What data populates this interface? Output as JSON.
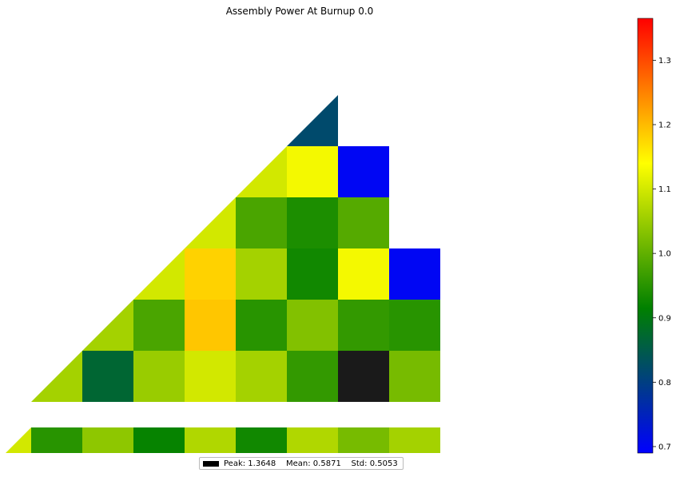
{
  "chart_data": {
    "type": "heatmap",
    "title": "Assembly Power At Burnup 0.0",
    "colormap": [
      "#0000ff",
      "#008000",
      "#ffff00",
      "#ff0000"
    ],
    "vmin": 0.69,
    "vmax": 1.365,
    "colorbar_ticks": [
      "0.7",
      "0.8",
      "0.9",
      "1.0",
      "1.1",
      "1.2",
      "1.3"
    ],
    "colorbar_tick_values": [
      0.7,
      0.8,
      0.9,
      1.0,
      1.1,
      1.2,
      1.3
    ],
    "rows": [
      [
        0.82
      ],
      [
        1.1,
        1.13,
        0.7
      ],
      [
        1.1,
        0.98,
        0.94,
        0.99
      ],
      [
        1.1,
        1.18,
        1.06,
        0.93,
        1.13,
        0.7
      ],
      [
        1.06,
        0.98,
        1.19,
        0.95,
        1.03,
        0.96,
        0.95
      ],
      [
        1.06,
        0.87,
        1.05,
        1.1,
        1.06,
        0.96,
        null,
        1.02
      ],
      [
        1.1,
        0.95,
        1.04,
        0.92,
        1.07,
        0.93,
        1.07,
        1.02,
        1.06
      ]
    ],
    "legend": {
      "peak": "Peak: 1.3648",
      "mean": "Mean: 0.5871",
      "std": "Std: 0.5053"
    }
  }
}
